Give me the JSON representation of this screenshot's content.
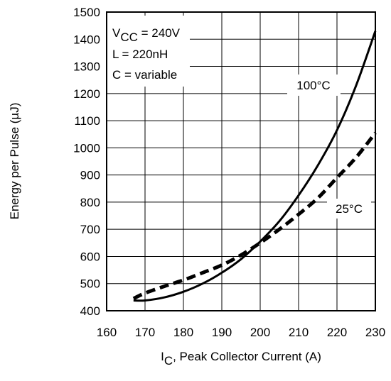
{
  "chart_data": {
    "type": "line",
    "title": "",
    "xlabel_main": "I",
    "xlabel_sub": "C",
    "xlabel_rest": ", Peak Collector Current (A)",
    "ylabel": "Energy per Pulse (µJ)",
    "xlim": [
      160,
      230
    ],
    "ylim": [
      400,
      1500
    ],
    "xticks": [
      160,
      170,
      180,
      190,
      200,
      210,
      220,
      230
    ],
    "yticks": [
      400,
      500,
      600,
      700,
      800,
      900,
      1000,
      1100,
      1200,
      1300,
      1400,
      1500
    ],
    "grid": true,
    "annotations": {
      "vcc_main": "V",
      "vcc_sub": "CC",
      "vcc_value": " = 240V",
      "inductance": "L = 220nH",
      "capacitance": "C = variable"
    },
    "series": [
      {
        "name": "100°C",
        "style": "solid",
        "x": [
          167,
          170,
          175,
          180,
          185,
          190,
          195,
          200,
          205,
          210,
          215,
          220,
          225,
          230
        ],
        "y": [
          438,
          438,
          449,
          470,
          500,
          540,
          590,
          655,
          730,
          825,
          935,
          1065,
          1230,
          1430
        ]
      },
      {
        "name": "25°C",
        "style": "dashed",
        "x": [
          167,
          170,
          175,
          180,
          185,
          190,
          195,
          200,
          205,
          210,
          215,
          220,
          225,
          230
        ],
        "y": [
          445,
          465,
          490,
          513,
          540,
          568,
          605,
          650,
          700,
          755,
          815,
          890,
          965,
          1055
        ]
      }
    ]
  }
}
